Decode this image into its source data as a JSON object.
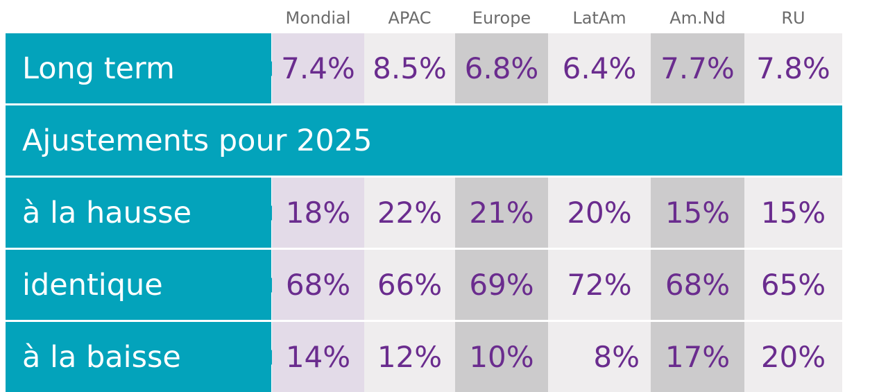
{
  "columns": [
    "Mondial",
    "APAC",
    "Europe",
    "LatAm",
    "Am.Nd",
    "RU"
  ],
  "rows": {
    "long_term": {
      "label": "Long term",
      "values": [
        "7.4%",
        "8.5%",
        "6.8%",
        "6.4%",
        "7.7%",
        "7.8%"
      ]
    },
    "section_title": "Ajustements pour 2025",
    "hausse": {
      "label": "à la hausse",
      "values": [
        "18%",
        "22%",
        "21%",
        "20%",
        "15%",
        "15%"
      ]
    },
    "identique": {
      "label": "identique",
      "values": [
        "68%",
        "66%",
        "69%",
        "72%",
        "68%",
        "65%"
      ]
    },
    "baisse": {
      "label": "à la baisse",
      "values": [
        "14%",
        "12%",
        "10%",
        "8%",
        "17%",
        "20%"
      ]
    }
  },
  "chart_data": {
    "type": "table",
    "columns": [
      "Mondial",
      "APAC",
      "Europe",
      "LatAm",
      "Am.Nd",
      "RU"
    ],
    "rows": [
      {
        "label": "Long term",
        "values": [
          7.4,
          8.5,
          6.8,
          6.4,
          7.7,
          7.8
        ],
        "unit": "%"
      },
      {
        "label": "Ajustements pour 2025",
        "section": true
      },
      {
        "label": "à la hausse",
        "values": [
          18,
          22,
          21,
          20,
          15,
          15
        ],
        "unit": "%"
      },
      {
        "label": "identique",
        "values": [
          68,
          66,
          69,
          72,
          68,
          65
        ],
        "unit": "%"
      },
      {
        "label": "à la baisse",
        "values": [
          14,
          12,
          10,
          8,
          17,
          20
        ],
        "unit": "%"
      }
    ]
  },
  "colors": {
    "label_bg": "#03a3bb",
    "label_text": "#ffffff",
    "value_text": "#6a2c8e",
    "header_text": "#6b6b6b",
    "mondial_bg": "#e3dbe8",
    "light_bg": "#efedee",
    "dark_bg": "#cccbcc"
  }
}
